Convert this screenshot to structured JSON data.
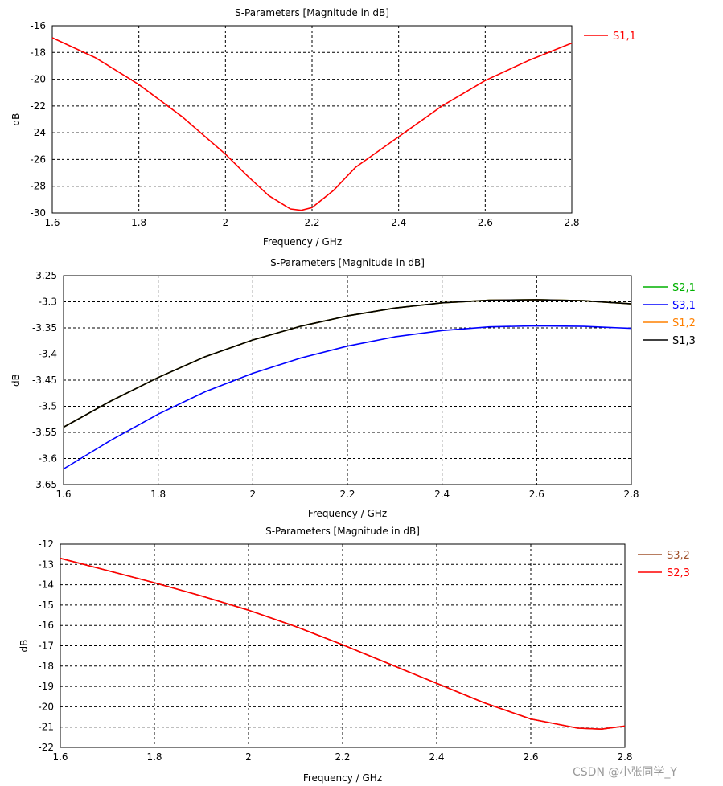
{
  "watermark": "CSDN @小张同学_Y",
  "chart_data": [
    {
      "type": "line",
      "title": "S-Parameters [Magnitude in dB]",
      "xlabel": "Frequency / GHz",
      "ylabel": "dB",
      "xlim": [
        1.6,
        2.8
      ],
      "ylim": [
        -30,
        -16
      ],
      "xticks": [
        "1.6",
        "1.8",
        "2",
        "2.2",
        "2.4",
        "2.6",
        "2.8"
      ],
      "yticks": [
        "-16",
        "-18",
        "-20",
        "-22",
        "-24",
        "-26",
        "-28",
        "-30"
      ],
      "grid": true,
      "legend_position": "right",
      "series": [
        {
          "name": "S1,1",
          "color": "#ff0000",
          "x": [
            1.6,
            1.7,
            1.8,
            1.9,
            2.0,
            2.05,
            2.1,
            2.15,
            2.175,
            2.2,
            2.25,
            2.3,
            2.4,
            2.5,
            2.6,
            2.7,
            2.8
          ],
          "y": [
            -16.9,
            -18.4,
            -20.4,
            -22.8,
            -25.6,
            -27.2,
            -28.7,
            -29.7,
            -29.8,
            -29.6,
            -28.3,
            -26.6,
            -24.3,
            -22.0,
            -20.1,
            -18.6,
            -17.3
          ]
        }
      ]
    },
    {
      "type": "line",
      "title": "S-Parameters [Magnitude in dB]",
      "xlabel": "Frequency / GHz",
      "ylabel": "dB",
      "xlim": [
        1.6,
        2.8
      ],
      "ylim": [
        -3.65,
        -3.25
      ],
      "xticks": [
        "1.6",
        "1.8",
        "2",
        "2.2",
        "2.4",
        "2.6",
        "2.8"
      ],
      "yticks": [
        "-3.25",
        "-3.3",
        "-3.35",
        "-3.4",
        "-3.45",
        "-3.5",
        "-3.55",
        "-3.6",
        "-3.65"
      ],
      "grid": true,
      "legend_position": "right",
      "series": [
        {
          "name": "S2,1",
          "color": "#00b000",
          "x": [
            1.6,
            1.7,
            1.8,
            1.9,
            2.0,
            2.1,
            2.2,
            2.3,
            2.4,
            2.5,
            2.6,
            2.7,
            2.8
          ],
          "y": [
            -3.54,
            -3.49,
            -3.445,
            -3.405,
            -3.373,
            -3.347,
            -3.327,
            -3.312,
            -3.302,
            -3.297,
            -3.296,
            -3.298,
            -3.304
          ]
        },
        {
          "name": "S3,1",
          "color": "#0000ff",
          "x": [
            1.6,
            1.7,
            1.8,
            1.9,
            2.0,
            2.1,
            2.2,
            2.3,
            2.4,
            2.5,
            2.6,
            2.7,
            2.8
          ],
          "y": [
            -3.62,
            -3.565,
            -3.515,
            -3.472,
            -3.437,
            -3.408,
            -3.385,
            -3.367,
            -3.355,
            -3.348,
            -3.346,
            -3.347,
            -3.351
          ]
        },
        {
          "name": "S1,2",
          "color": "#ff8000",
          "x": [
            1.6,
            1.7,
            1.8,
            1.9,
            2.0,
            2.1,
            2.2,
            2.3,
            2.4,
            2.5,
            2.6,
            2.7,
            2.8
          ],
          "y": [
            -3.54,
            -3.49,
            -3.445,
            -3.405,
            -3.373,
            -3.347,
            -3.327,
            -3.312,
            -3.302,
            -3.297,
            -3.296,
            -3.298,
            -3.304
          ]
        },
        {
          "name": "S1,3",
          "color": "#000000",
          "x": [
            1.6,
            1.7,
            1.8,
            1.9,
            2.0,
            2.1,
            2.2,
            2.3,
            2.4,
            2.5,
            2.6,
            2.7,
            2.8
          ],
          "y": [
            -3.54,
            -3.49,
            -3.445,
            -3.405,
            -3.373,
            -3.347,
            -3.327,
            -3.312,
            -3.302,
            -3.297,
            -3.296,
            -3.298,
            -3.304
          ]
        }
      ]
    },
    {
      "type": "line",
      "title": "S-Parameters [Magnitude in dB]",
      "xlabel": "Frequency / GHz",
      "ylabel": "dB",
      "xlim": [
        1.6,
        2.8
      ],
      "ylim": [
        -22,
        -12
      ],
      "xticks": [
        "1.6",
        "1.8",
        "2",
        "2.2",
        "2.4",
        "2.6",
        "2.8"
      ],
      "yticks": [
        "-12",
        "-13",
        "-14",
        "-15",
        "-16",
        "-17",
        "-18",
        "-19",
        "-20",
        "-21",
        "-22"
      ],
      "grid": true,
      "legend_position": "right",
      "series": [
        {
          "name": "S3,2",
          "color": "#a0522d",
          "x": [
            1.6,
            1.7,
            1.8,
            1.9,
            2.0,
            2.1,
            2.2,
            2.3,
            2.4,
            2.5,
            2.6,
            2.7,
            2.75,
            2.8
          ],
          "y": [
            -12.7,
            -13.3,
            -13.9,
            -14.55,
            -15.25,
            -16.05,
            -16.95,
            -17.9,
            -18.85,
            -19.8,
            -20.6,
            -21.05,
            -21.1,
            -20.95
          ]
        },
        {
          "name": "S2,3",
          "color": "#ff0000",
          "x": [
            1.6,
            1.7,
            1.8,
            1.9,
            2.0,
            2.1,
            2.2,
            2.3,
            2.4,
            2.5,
            2.6,
            2.7,
            2.75,
            2.8
          ],
          "y": [
            -12.7,
            -13.3,
            -13.9,
            -14.55,
            -15.25,
            -16.05,
            -16.95,
            -17.9,
            -18.85,
            -19.8,
            -20.6,
            -21.05,
            -21.1,
            -20.95
          ]
        }
      ]
    }
  ]
}
